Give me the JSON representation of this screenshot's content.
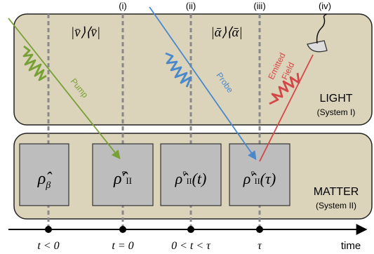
{
  "stages": [
    {
      "label": "(i)"
    },
    {
      "label": "(ii)"
    },
    {
      "label": "(iii)"
    },
    {
      "label": "(iv)"
    }
  ],
  "light": {
    "title": "LIGHT",
    "subtitle": "(System I)",
    "states": {
      "initial": "|v̄⟩⟨v̄|",
      "probe": "|ᾱ⟩⟨ᾱ|"
    },
    "pulses": {
      "pump": "Pump",
      "probe": "Probe",
      "emitted_line1": "Emitted",
      "emitted_line2": "Field"
    }
  },
  "matter": {
    "title": "MATTER",
    "subtitle": "(System II)",
    "boxes": [
      {
        "rho": "ρ̂",
        "sub": "β",
        "sup": "",
        "arg": ""
      },
      {
        "rho": "ρ̂",
        "sub": "II",
        "sup": "v̄",
        "arg": ""
      },
      {
        "rho": "ρ̂",
        "sub": "II",
        "sup": "v̄",
        "arg": "(t)"
      },
      {
        "rho": "ρ̂",
        "sub": "II",
        "sup": "v̄",
        "arg": "(τ)"
      }
    ]
  },
  "timeline": {
    "axis_label": "time",
    "ticks": [
      "t < 0",
      "t = 0",
      "0 < t < τ",
      "τ"
    ]
  },
  "colors": {
    "panel_fill": "#dcd4ba",
    "panel_stroke": "#222222",
    "box_fill": "#bdbdbd",
    "pump": "#77a035",
    "probe": "#4a88cc",
    "emitted": "#d24848",
    "dashed": "#888888"
  }
}
